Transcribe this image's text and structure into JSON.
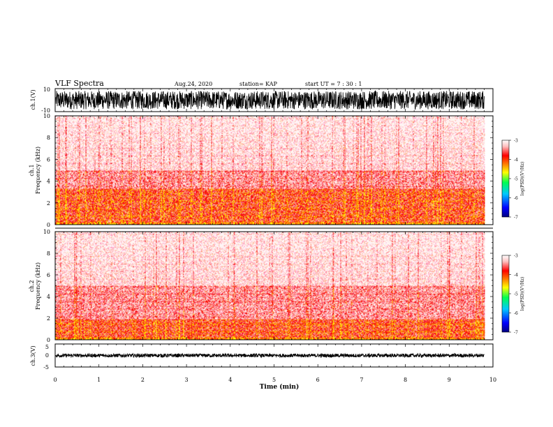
{
  "header": {
    "title": "VLF Spectra",
    "date": "Aug.24, 2020",
    "station": "station= KAP",
    "start": "start  UT =   7 : 30 : 1"
  },
  "colors": {
    "frame": "#000000",
    "background": "#ffffff",
    "colormap": [
      "#000080",
      "#0000ff",
      "#00c8ff",
      "#00ff50",
      "#ffff00",
      "#ff7000",
      "#ff0000",
      "#ffc0c0",
      "#ffffff"
    ]
  },
  "chart_data": [
    {
      "id": "ch1-waveform",
      "type": "line",
      "ylabel": "ch.1(V)",
      "ylim": [
        -10,
        10
      ],
      "yticks": [
        "10",
        "-10"
      ],
      "x_range_min": [
        0,
        10
      ],
      "data_end_min": 9.8,
      "amplitude_envelope_v": [
        -8,
        8
      ]
    },
    {
      "id": "ch1-spectrogram",
      "type": "heatmap",
      "ylabel_line1": "ch.1",
      "ylabel_line2": "Frequency  (kHz)",
      "ylim": [
        0,
        10
      ],
      "yticks": [
        "0",
        "2",
        "4",
        "6",
        "8",
        "10"
      ],
      "x_range_min": [
        0,
        10
      ],
      "data_end_min": 9.8,
      "intense_band_khz": [
        0.2,
        3.3
      ],
      "moderate_band_khz": [
        3.3,
        5.0
      ],
      "colorbar": {
        "label": "log(PSD)(V²/Hz)",
        "ticks": [
          "-3",
          "-4",
          "-5",
          "-6",
          "-7"
        ],
        "range": [
          -7,
          -3
        ]
      }
    },
    {
      "id": "ch2-spectrogram",
      "type": "heatmap",
      "ylabel_line1": "ch.2",
      "ylabel_line2": "Frequency  (kHz)",
      "ylim": [
        0,
        10
      ],
      "yticks": [
        "0",
        "2",
        "4",
        "6",
        "8",
        "10"
      ],
      "x_range_min": [
        0,
        10
      ],
      "data_end_min": 9.8,
      "intense_band_khz": [
        0.2,
        1.9
      ],
      "moderate_band_khz": [
        1.9,
        5.0
      ],
      "colorbar": {
        "label": "log(PSD)(V²/Hz)",
        "ticks": [
          "-3",
          "-4",
          "-5",
          "-6",
          "-7"
        ],
        "range": [
          -7,
          -3
        ]
      }
    },
    {
      "id": "ch3-waveform",
      "type": "line",
      "ylabel": "ch.3(V)",
      "ylim": [
        -5,
        5
      ],
      "yticks": [
        "5",
        "0",
        "-5"
      ],
      "x_range_min": [
        0,
        10
      ],
      "data_end_min": 9.8,
      "amplitude_envelope_v": [
        -0.8,
        0.8
      ]
    }
  ],
  "xaxis": {
    "label": "Time  (min)",
    "ticks": [
      "0",
      "1",
      "2",
      "3",
      "4",
      "5",
      "6",
      "7",
      "8",
      "9",
      "10"
    ],
    "range": [
      0,
      10
    ]
  }
}
